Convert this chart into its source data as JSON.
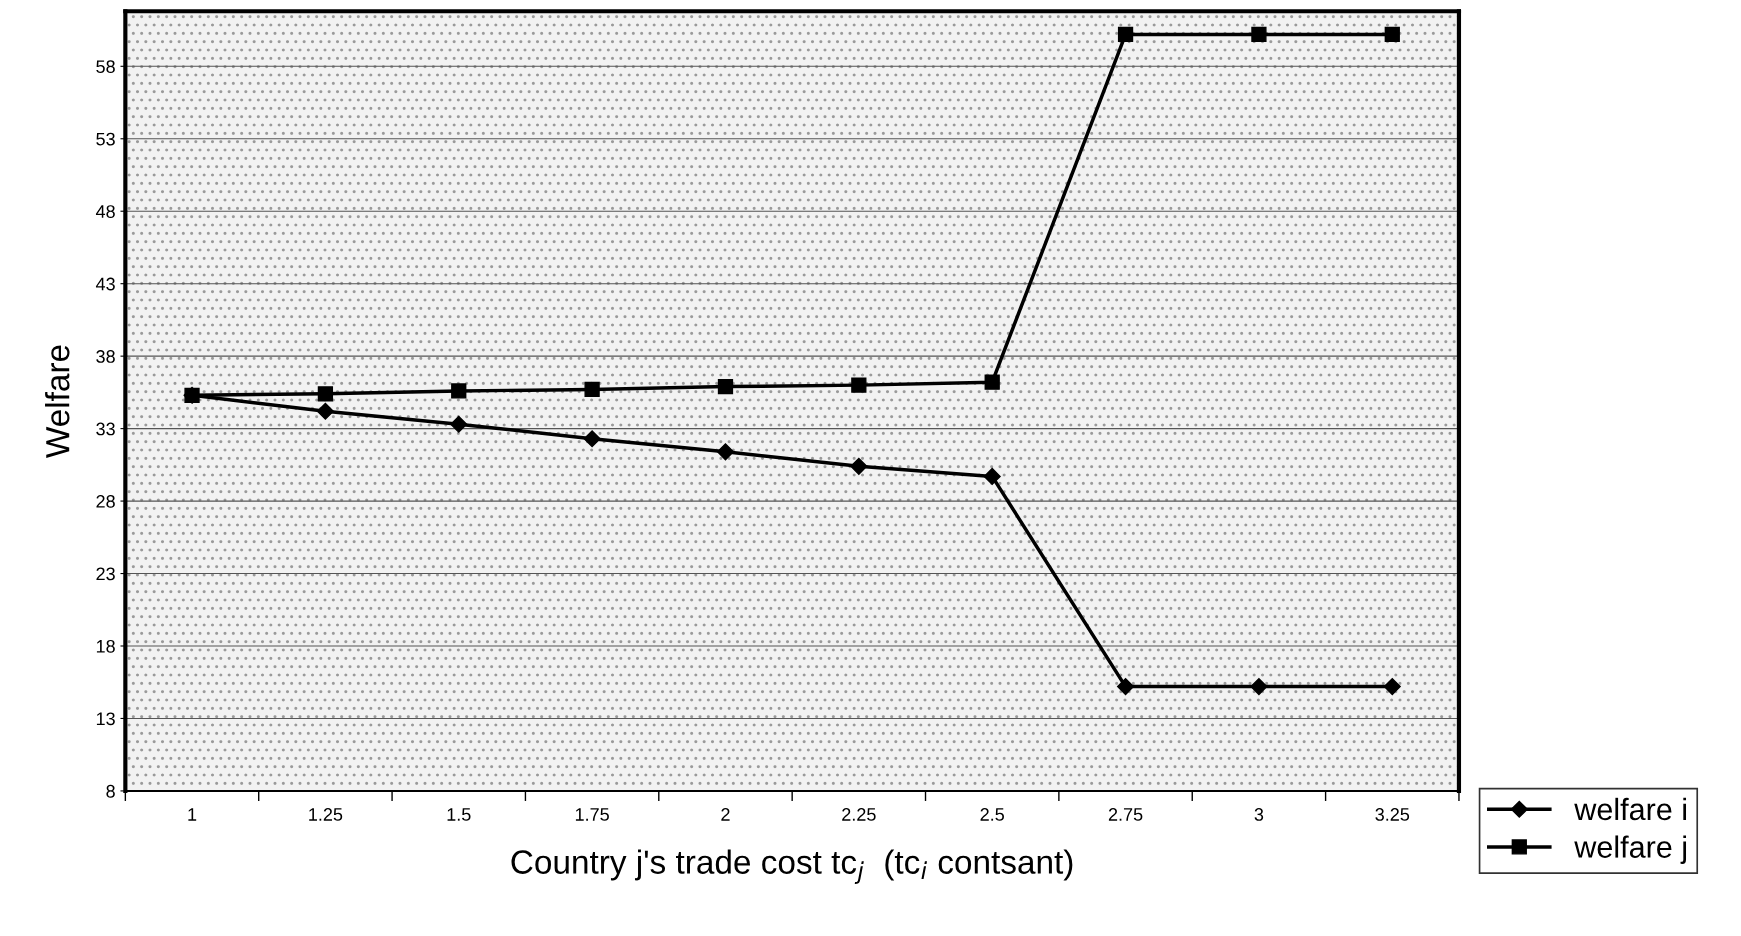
{
  "chart_data": {
    "type": "line",
    "xlabel": "Country j's trade cost tc$_{j}$  (tc$_{i}$ contsant)",
    "ylabel": "Welfare",
    "categories": [
      "1",
      "1.25",
      "1.5",
      "1.75",
      "2",
      "2.25",
      "2.5",
      "2.75",
      "3",
      "3.25"
    ],
    "series": [
      {
        "name": "welfare i",
        "color": "#000000",
        "marker": "diamond",
        "values": [
          35.3,
          34.2,
          33.3,
          32.3,
          31.4,
          30.4,
          29.7,
          15.2,
          15.2,
          15.2
        ]
      },
      {
        "name": "welfare j",
        "color": "#000000",
        "marker": "square",
        "values": [
          35.3,
          35.4,
          35.6,
          35.7,
          35.9,
          36.0,
          36.2,
          60.2,
          60.2,
          60.2
        ]
      }
    ],
    "ylim": [
      8,
      61.8
    ],
    "yticks": [
      8,
      13,
      18,
      23,
      28,
      33,
      38,
      43,
      48,
      53,
      58
    ],
    "grid": "y",
    "legend": "bottom right",
    "line_style": "solid"
  }
}
